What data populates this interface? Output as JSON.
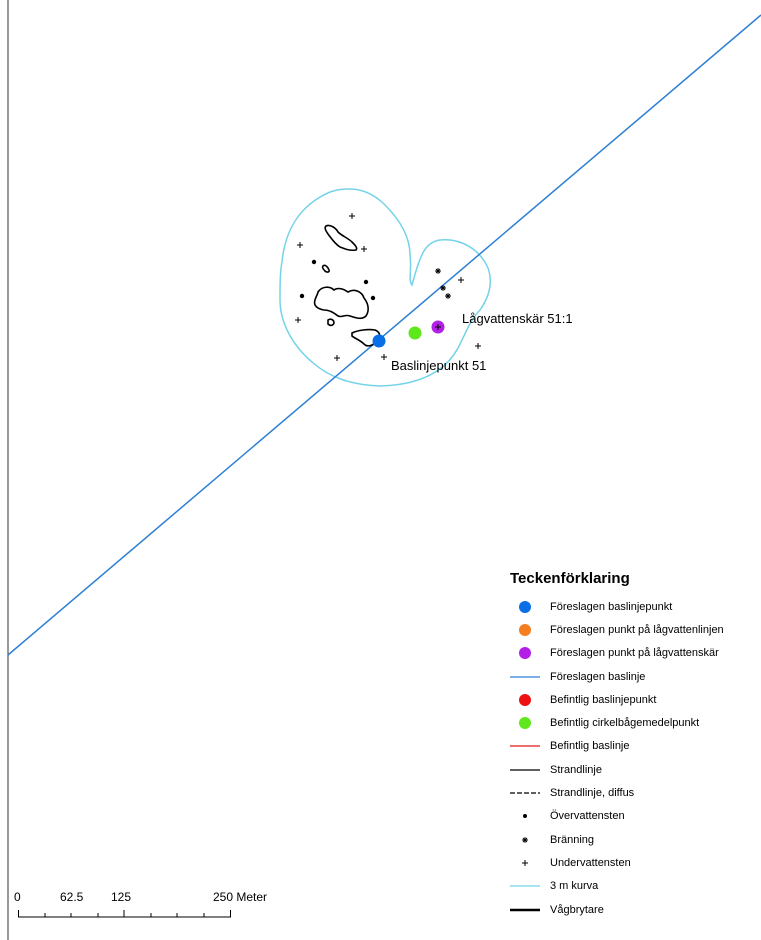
{
  "map": {
    "labels": {
      "lagvattenskar": "Lågvattenskär 51:1",
      "baslinjepunkt": "Baslinjepunkt 51"
    },
    "colors": {
      "baseline": "#2d7fd5",
      "contour": "#74d3e8",
      "blue_point": "#0a6fe6",
      "green_point": "#5ee81c",
      "purple_point": "#b21fe6"
    }
  },
  "legend": {
    "title": "Teckenförklaring",
    "items": [
      {
        "label": "Föreslagen baslinjepunkt",
        "symbol": "dot",
        "color": "#0a6fe6"
      },
      {
        "label": "Föreslagen punkt på lågvattenlinjen",
        "symbol": "dot",
        "color": "#f47e20"
      },
      {
        "label": "Föreslagen punkt på lågvattenskär",
        "symbol": "dot",
        "color": "#b21fe6"
      },
      {
        "label": "Föreslagen baslinje",
        "symbol": "line",
        "color": "#2d7fd5"
      },
      {
        "label": "Befintlig baslinjepunkt",
        "symbol": "dot",
        "color": "#ee1111"
      },
      {
        "label": "Befintlig cirkelbågemedelpunkt",
        "symbol": "dot",
        "color": "#5ee81c"
      },
      {
        "label": "Befintlig baslinje",
        "symbol": "line",
        "color": "#e01b1b"
      },
      {
        "label": "Strandlinje",
        "symbol": "line",
        "color": "#000000"
      },
      {
        "label": "Strandlinje, diffus",
        "symbol": "dashed",
        "color": "#000000"
      },
      {
        "label": "Övervattensten",
        "symbol": "smalldot",
        "color": "#000000"
      },
      {
        "label": "Bränning",
        "symbol": "star",
        "color": "#000000"
      },
      {
        "label": "Undervattensten",
        "symbol": "plus",
        "color": "#000000"
      },
      {
        "label": "3 m kurva",
        "symbol": "line",
        "color": "#74d3e8"
      },
      {
        "label": "Vågbrytare",
        "symbol": "thickline",
        "color": "#000000"
      }
    ]
  },
  "scalebar": {
    "ticks": [
      "0",
      "62.5",
      "125",
      "250 Meter"
    ]
  }
}
